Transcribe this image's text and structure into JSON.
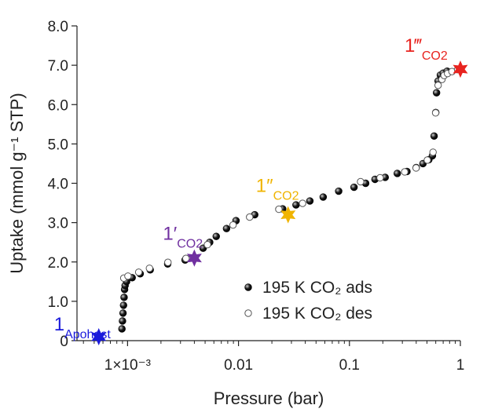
{
  "chart_data": {
    "type": "scatter",
    "title": "",
    "xlabel": "Pressure (bar)",
    "ylabel": "Uptake (mmol g⁻¹ STP)",
    "xscale": "log",
    "xlim": [
      0.00035,
      1.0
    ],
    "ylim": [
      0,
      8
    ],
    "grid": false,
    "legend_position": "lower-right",
    "x_ticks": [
      {
        "value": 0.001,
        "label": "1×10⁻³"
      },
      {
        "value": 0.01,
        "label": "0.01"
      },
      {
        "value": 0.1,
        "label": "0.1"
      },
      {
        "value": 1,
        "label": "1"
      }
    ],
    "y_ticks": [
      {
        "value": 0,
        "label": "0"
      },
      {
        "value": 1,
        "label": "1.0"
      },
      {
        "value": 2,
        "label": "2.0"
      },
      {
        "value": 3,
        "label": "3.0"
      },
      {
        "value": 4,
        "label": "4.0"
      },
      {
        "value": 5,
        "label": "5.0"
      },
      {
        "value": 6,
        "label": "6.0"
      },
      {
        "value": 7,
        "label": "7.0"
      },
      {
        "value": 8,
        "label": "8.0"
      }
    ],
    "series": [
      {
        "name": "195 K CO₂ ads",
        "marker": "filled-circle",
        "color": "#111111",
        "points": [
          [
            0.00089,
            0.3
          ],
          [
            0.0009,
            0.5
          ],
          [
            0.00091,
            0.7
          ],
          [
            0.00092,
            0.9
          ],
          [
            0.00093,
            1.1
          ],
          [
            0.00094,
            1.3
          ],
          [
            0.00095,
            1.4
          ],
          [
            0.00098,
            1.5
          ],
          [
            0.0011,
            1.6
          ],
          [
            0.0013,
            1.7
          ],
          [
            0.0016,
            1.8
          ],
          [
            0.0023,
            1.95
          ],
          [
            0.0033,
            2.05
          ],
          [
            0.0048,
            2.35
          ],
          [
            0.0055,
            2.5
          ],
          [
            0.0063,
            2.65
          ],
          [
            0.0078,
            2.85
          ],
          [
            0.0095,
            3.05
          ],
          [
            0.014,
            3.2
          ],
          [
            0.025,
            3.35
          ],
          [
            0.033,
            3.45
          ],
          [
            0.044,
            3.55
          ],
          [
            0.058,
            3.65
          ],
          [
            0.08,
            3.8
          ],
          [
            0.11,
            3.9
          ],
          [
            0.14,
            4.0
          ],
          [
            0.17,
            4.1
          ],
          [
            0.21,
            4.15
          ],
          [
            0.27,
            4.25
          ],
          [
            0.33,
            4.3
          ],
          [
            0.4,
            4.4
          ],
          [
            0.46,
            4.5
          ],
          [
            0.52,
            4.6
          ],
          [
            0.56,
            4.7
          ],
          [
            0.58,
            5.2
          ],
          [
            0.6,
            5.8
          ],
          [
            0.61,
            6.3
          ],
          [
            0.63,
            6.6
          ],
          [
            0.66,
            6.75
          ],
          [
            0.7,
            6.8
          ],
          [
            0.76,
            6.85
          ]
        ]
      },
      {
        "name": "195 K CO₂ des",
        "marker": "open-circle",
        "color": "#444444",
        "points": [
          [
            0.00088,
            1.55
          ],
          [
            0.00096,
            1.6
          ],
          [
            0.0012,
            1.7
          ],
          [
            0.0015,
            1.8
          ],
          [
            0.0022,
            1.95
          ],
          [
            0.0032,
            2.05
          ],
          [
            0.005,
            2.4
          ],
          [
            0.0085,
            2.9
          ],
          [
            0.012,
            3.1
          ],
          [
            0.022,
            3.3
          ],
          [
            0.036,
            3.45
          ],
          [
            0.12,
            4.0
          ],
          [
            0.18,
            4.1
          ],
          [
            0.3,
            4.25
          ],
          [
            0.38,
            4.35
          ],
          [
            0.48,
            4.55
          ],
          [
            0.54,
            4.75
          ],
          [
            0.57,
            5.75
          ],
          [
            0.6,
            6.45
          ],
          [
            0.65,
            6.6
          ],
          [
            0.68,
            6.7
          ],
          [
            0.73,
            6.75
          ],
          [
            0.8,
            6.8
          ],
          [
            0.9,
            6.85
          ]
        ]
      }
    ],
    "annotations": [
      {
        "label": "1",
        "subscript": "Apohost",
        "x": 0.00055,
        "y": 0.1,
        "color": "#1a1adb",
        "marker": "star"
      },
      {
        "label": "1′",
        "subscript": "CO2",
        "x": 0.004,
        "y": 2.1,
        "color": "#7030a0",
        "marker": "star"
      },
      {
        "label": "1″",
        "subscript": "CO2",
        "x": 0.028,
        "y": 3.2,
        "color": "#f0b400",
        "marker": "star"
      },
      {
        "label": "1‴",
        "subscript": "CO2",
        "x": 1.0,
        "y": 6.9,
        "color": "#e8231f",
        "marker": "star"
      }
    ]
  }
}
